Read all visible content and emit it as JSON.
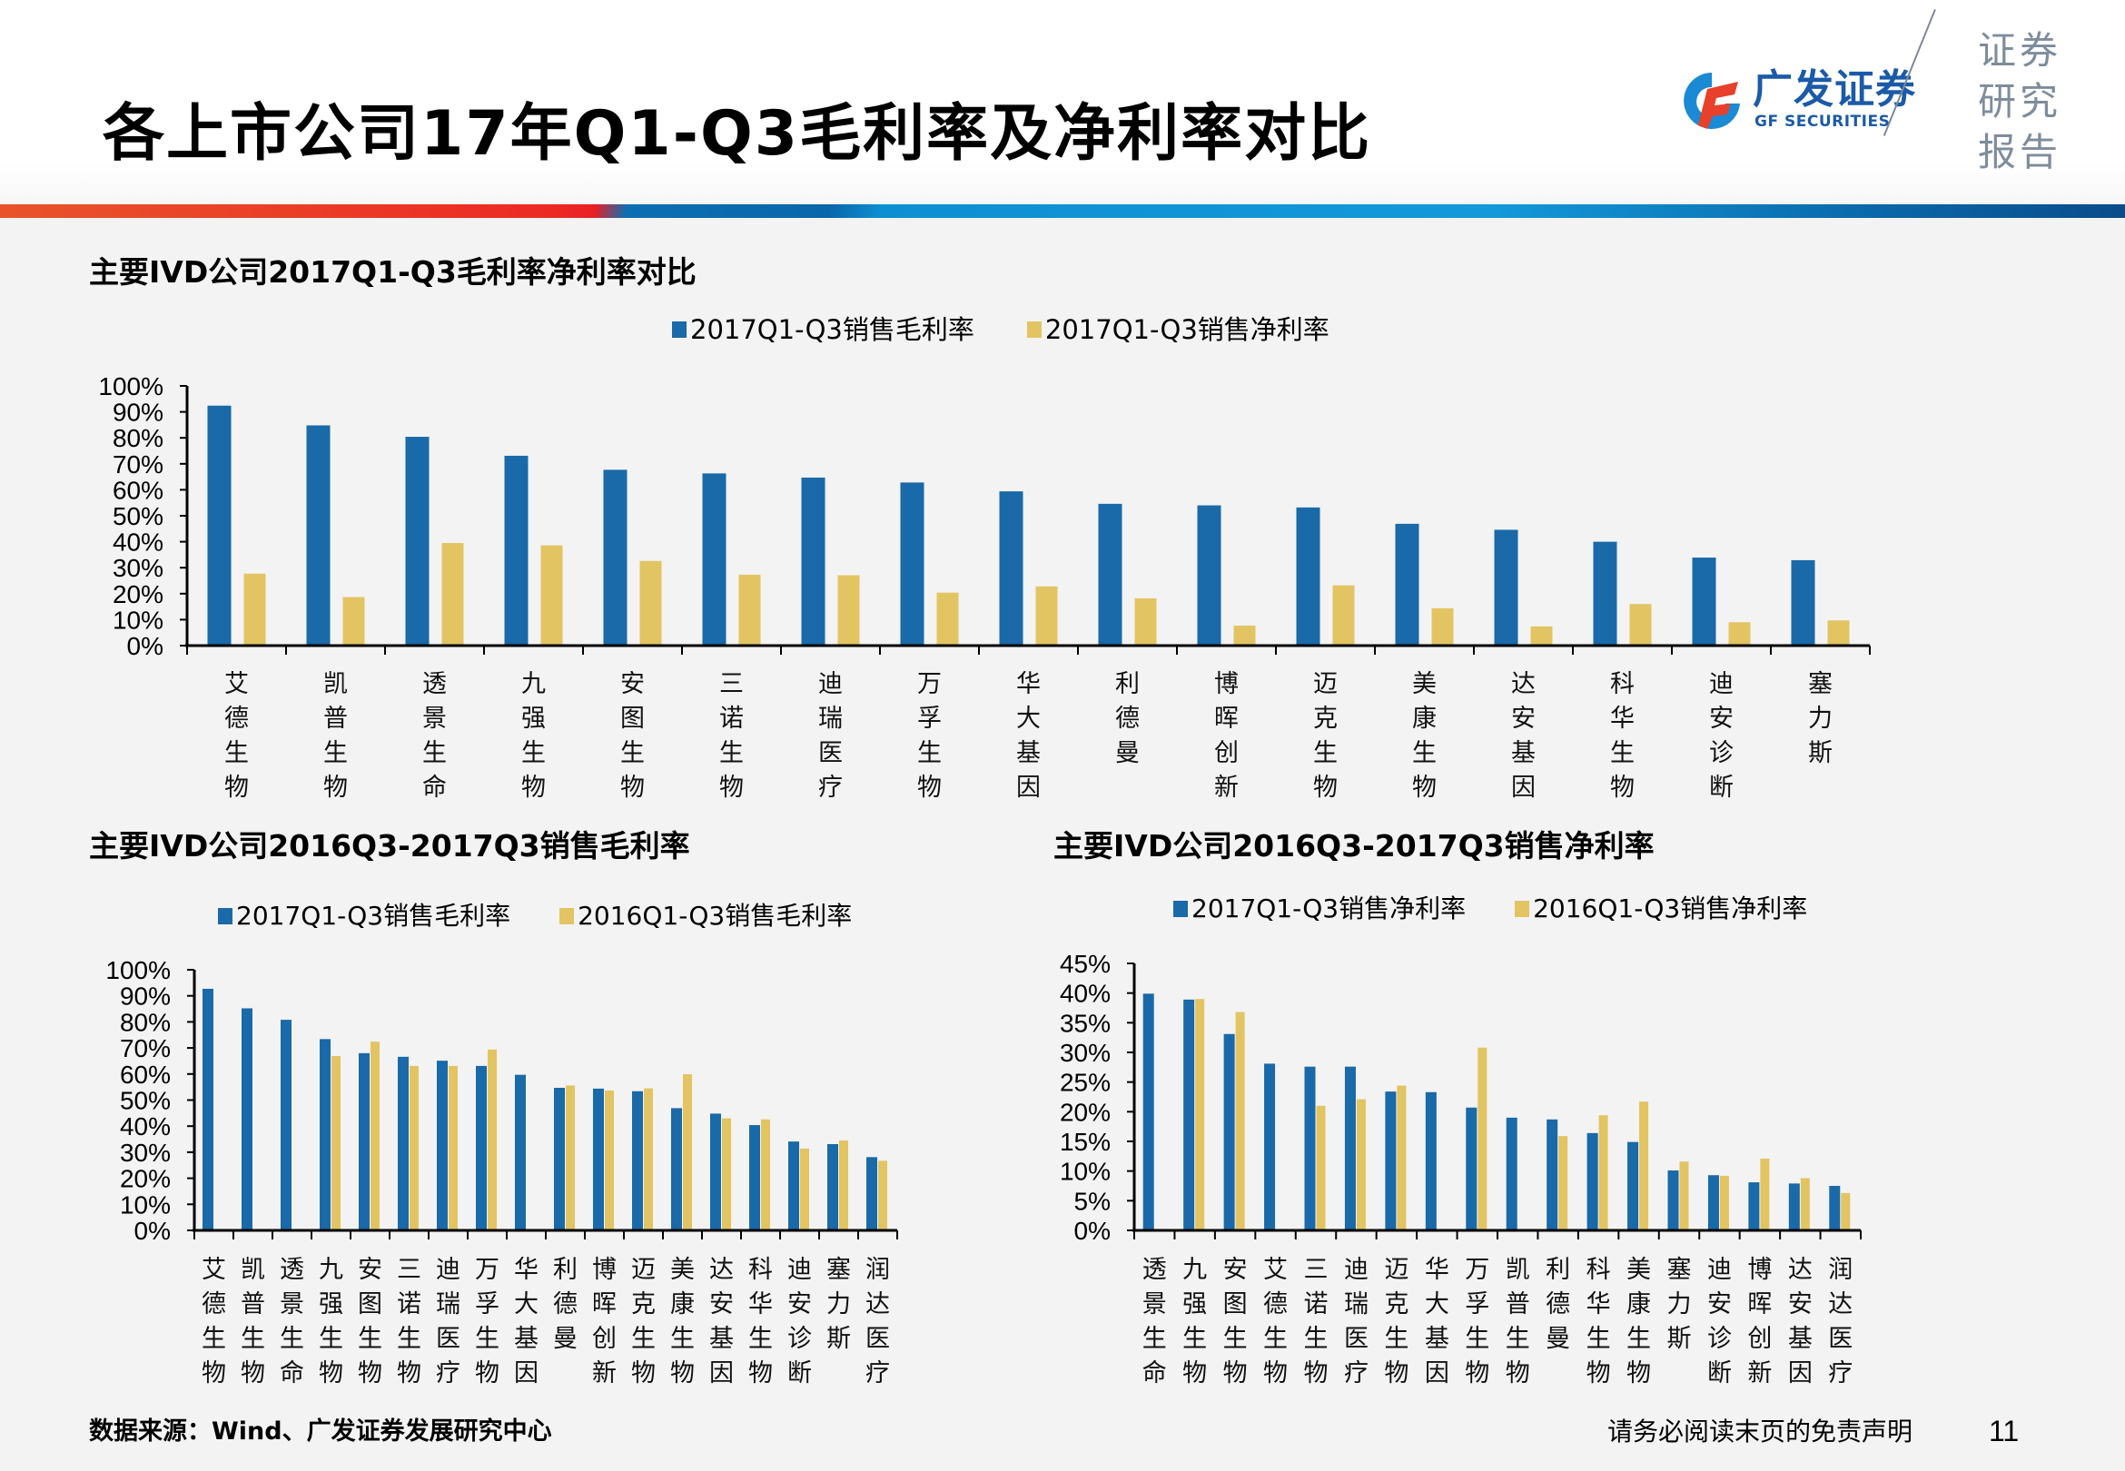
{
  "header": {
    "title": "各上市公司17年Q1-Q3毛利率及净利率对比",
    "logo_cn": "广发证券",
    "logo_en": "GF SECURITIES",
    "report_tag": [
      "证券",
      "研究",
      "报告"
    ]
  },
  "colors": {
    "blue": "#1a69a8",
    "gold": "#e2c463",
    "background": "#f3f3f3"
  },
  "footer": {
    "source": "数据来源：Wind、广发证券发展研究中心",
    "disclaimer": "请务必阅读末页的免责声明",
    "page_number": "11"
  },
  "chart_data": [
    {
      "id": "chart1",
      "type": "bar",
      "title": "主要IVD公司2017Q1-Q3毛利率净利率对比",
      "xlabel": "",
      "ylabel": "",
      "ylim": [
        0,
        100
      ],
      "yticks": [
        "0%",
        "10%",
        "20%",
        "30%",
        "40%",
        "50%",
        "60%",
        "70%",
        "80%",
        "90%",
        "100%"
      ],
      "legend_position": "top-center",
      "grid": false,
      "categories": [
        "艾德生物",
        "凯普生物",
        "透景生命",
        "九强生物",
        "安图生物",
        "三诺生物",
        "迪瑞医疗",
        "万孚生物",
        "华大基因",
        "利德曼",
        "博晖创新",
        "迈克生物",
        "美康生物",
        "达安基因",
        "科华生物",
        "迪安诊断",
        "塞力斯"
      ],
      "series": [
        {
          "name": "2017Q1-Q3销售毛利率",
          "color": "#1a69a8",
          "values": [
            92.4,
            84.8,
            80.4,
            73.1,
            67.7,
            66.3,
            64.7,
            62.8,
            59.4,
            54.6,
            54.0,
            53.2,
            46.9,
            44.6,
            40.0,
            33.9,
            32.9
          ]
        },
        {
          "name": "2017Q1-Q3销售净利率",
          "color": "#e2c463",
          "values": [
            27.7,
            18.7,
            39.5,
            38.6,
            32.6,
            27.3,
            27.1,
            20.4,
            22.8,
            18.2,
            7.7,
            23.2,
            14.4,
            7.4,
            16.0,
            9.0,
            9.7
          ]
        }
      ]
    },
    {
      "id": "chart2",
      "type": "bar",
      "title": "主要IVD公司2016Q3-2017Q3销售毛利率",
      "xlabel": "",
      "ylabel": "",
      "ylim": [
        0,
        100
      ],
      "yticks": [
        "0%",
        "10%",
        "20%",
        "30%",
        "40%",
        "50%",
        "60%",
        "70%",
        "80%",
        "90%",
        "100%"
      ],
      "legend_position": "top-center",
      "grid": false,
      "categories": [
        "艾德生物",
        "凯普生物",
        "透景生命",
        "九强生物",
        "安图生物",
        "三诺生物",
        "迪瑞医疗",
        "万孚生物",
        "华大基因",
        "利德曼",
        "博晖创新",
        "迈克生物",
        "美康生物",
        "达安基因",
        "科华生物",
        "迪安诊断",
        "塞力斯",
        "润达医疗"
      ],
      "series": [
        {
          "name": "2017Q1-Q3销售毛利率",
          "color": "#1a69a8",
          "values": [
            92.7,
            85.2,
            80.8,
            73.4,
            68.0,
            66.6,
            65.1,
            63.1,
            59.7,
            54.7,
            54.4,
            53.4,
            46.9,
            44.8,
            40.4,
            34.1,
            33.1,
            28.1
          ]
        },
        {
          "name": "2016Q1-Q3销售毛利率",
          "color": "#e2c463",
          "values": [
            null,
            null,
            null,
            66.9,
            72.4,
            63.1,
            63.1,
            69.4,
            null,
            55.6,
            53.7,
            54.5,
            59.9,
            43.0,
            42.6,
            31.4,
            34.5,
            26.7
          ]
        }
      ]
    },
    {
      "id": "chart3",
      "type": "bar",
      "title": "主要IVD公司2016Q3-2017Q3销售净利率",
      "xlabel": "",
      "ylabel": "",
      "ylim": [
        0,
        45
      ],
      "yticks": [
        "0%",
        "5%",
        "10%",
        "15%",
        "20%",
        "25%",
        "30%",
        "35%",
        "40%",
        "45%"
      ],
      "legend_position": "top-center",
      "grid": false,
      "categories": [
        "透景生命",
        "九强生物",
        "安图生物",
        "艾德生物",
        "三诺生物",
        "迪瑞医疗",
        "迈克生物",
        "华大基因",
        "万孚生物",
        "凯普生物",
        "利德曼",
        "科华生物",
        "美康生物",
        "塞力斯",
        "迪安诊断",
        "博晖创新",
        "达安基因",
        "润达医疗"
      ],
      "series": [
        {
          "name": "2017Q1-Q3销售净利率",
          "color": "#1a69a8",
          "values": [
            39.9,
            38.9,
            33.1,
            28.1,
            27.6,
            27.6,
            23.4,
            23.3,
            20.7,
            19.0,
            18.7,
            16.4,
            14.9,
            10.1,
            9.3,
            8.1,
            7.9,
            7.5
          ]
        },
        {
          "name": "2016Q1-Q3销售净利率",
          "color": "#e2c463",
          "values": [
            null,
            39.0,
            36.8,
            null,
            21.0,
            22.1,
            24.4,
            null,
            30.8,
            null,
            15.9,
            19.4,
            21.7,
            11.6,
            9.2,
            12.1,
            8.8,
            6.3
          ]
        }
      ]
    }
  ]
}
